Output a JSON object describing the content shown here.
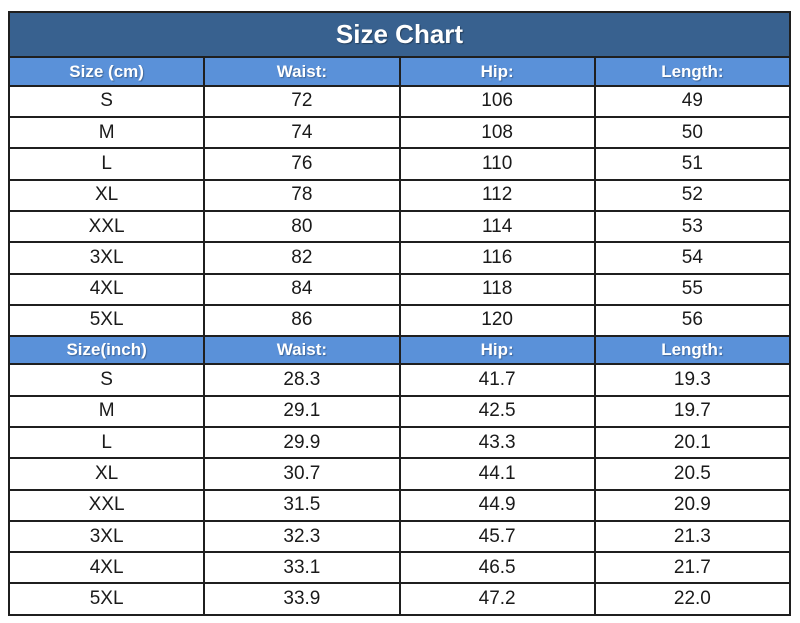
{
  "title": "Size Chart",
  "colors": {
    "title_bg": "#38618f",
    "title_text": "#ffffff",
    "header_bg": "#5a91d9",
    "header_text": "#ffffff",
    "cell_bg": "#ffffff",
    "cell_text": "#1a1a1a",
    "border": "#1f1f1f",
    "header_border": "#1b2a44"
  },
  "chart_data": {
    "type": "table",
    "title": "Size Chart",
    "sections": [
      {
        "unit": "cm",
        "columns": [
          "Size (cm)",
          "Waist:",
          "Hip:",
          "Length:"
        ],
        "rows": [
          [
            "S",
            "72",
            "106",
            "49"
          ],
          [
            "M",
            "74",
            "108",
            "50"
          ],
          [
            "L",
            "76",
            "110",
            "51"
          ],
          [
            "XL",
            "78",
            "112",
            "52"
          ],
          [
            "XXL",
            "80",
            "114",
            "53"
          ],
          [
            "3XL",
            "82",
            "116",
            "54"
          ],
          [
            "4XL",
            "84",
            "118",
            "55"
          ],
          [
            "5XL",
            "86",
            "120",
            "56"
          ]
        ]
      },
      {
        "unit": "inch",
        "columns": [
          "Size(inch)",
          "Waist:",
          "Hip:",
          "Length:"
        ],
        "rows": [
          [
            "S",
            "28.3",
            "41.7",
            "19.3"
          ],
          [
            "M",
            "29.1",
            "42.5",
            "19.7"
          ],
          [
            "L",
            "29.9",
            "43.3",
            "20.1"
          ],
          [
            "XL",
            "30.7",
            "44.1",
            "20.5"
          ],
          [
            "XXL",
            "31.5",
            "44.9",
            "20.9"
          ],
          [
            "3XL",
            "32.3",
            "45.7",
            "21.3"
          ],
          [
            "4XL",
            "33.1",
            "46.5",
            "21.7"
          ],
          [
            "5XL",
            "33.9",
            "47.2",
            "22.0"
          ]
        ]
      }
    ]
  }
}
